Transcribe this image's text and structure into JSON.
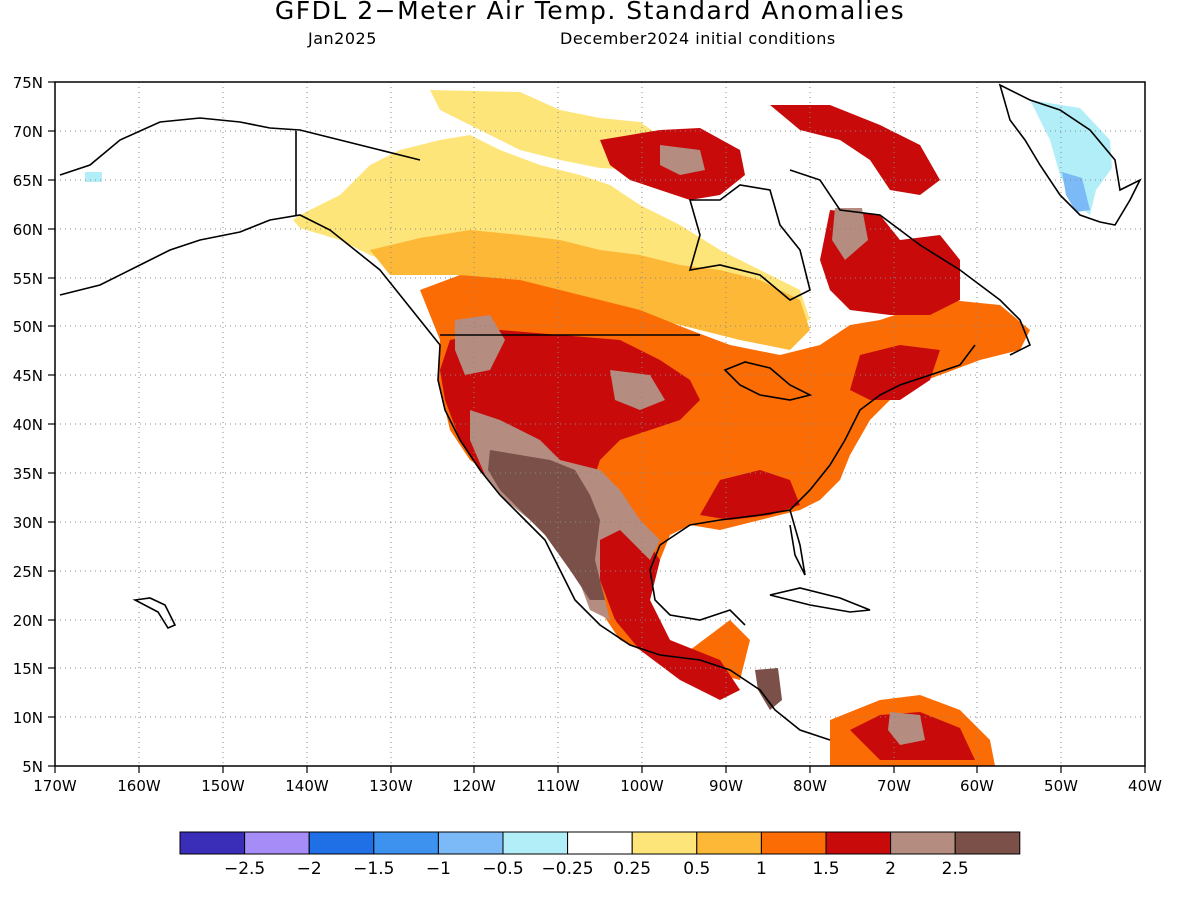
{
  "title": "GFDL 2−Meter Air Temp. Standard Anomalies",
  "subtitle_left": "Jan2025",
  "subtitle_right": "December2024 initial conditions",
  "lat_labels": [
    "75N",
    "70N",
    "65N",
    "60N",
    "55N",
    "50N",
    "45N",
    "40N",
    "35N",
    "30N",
    "25N",
    "20N",
    "15N",
    "10N",
    "5N"
  ],
  "lon_labels": [
    "170W",
    "160W",
    "150W",
    "140W",
    "130W",
    "120W",
    "110W",
    "100W",
    "90W",
    "80W",
    "70W",
    "60W",
    "50W",
    "40W"
  ],
  "colorbar": {
    "colors": [
      "#3a2db8",
      "#a58cf7",
      "#1f6fe6",
      "#3d92f0",
      "#7bbaf7",
      "#b2eef8",
      "#ffffff",
      "#fde57a",
      "#fdb838",
      "#fb6c05",
      "#c80a0a",
      "#b48c80",
      "#7a5048"
    ],
    "labels": [
      "−2.5",
      "−2",
      "−1.5",
      "−1",
      "−0.5",
      "−0.25",
      "0.25",
      "0.5",
      "1",
      "1.5",
      "2",
      "2.5"
    ]
  },
  "colors": {
    "land_outline": "#000000",
    "yellow": "#fde57a",
    "light_orange": "#fdb838",
    "orange": "#fb6c05",
    "red": "#c80a0a",
    "light_brown": "#b48c80",
    "dark_brown": "#7a5048",
    "light_blue": "#b2eef8",
    "blue": "#7bbaf7"
  }
}
